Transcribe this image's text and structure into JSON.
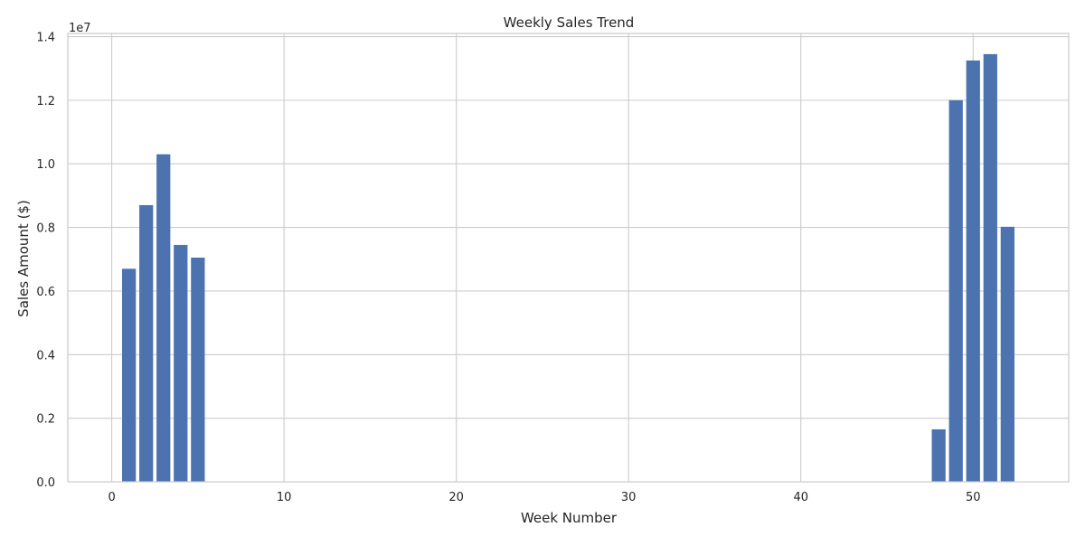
{
  "chart_data": {
    "type": "bar",
    "title": "Weekly Sales Trend",
    "xlabel": "Week Number",
    "ylabel": "Sales Amount ($)",
    "y_offset_label": "1e7",
    "y_scale": 10000000,
    "x": [
      1,
      2,
      3,
      4,
      5,
      48,
      49,
      50,
      51,
      52
    ],
    "values": [
      6700000,
      8700000,
      10300000,
      7450000,
      7050000,
      1650000,
      12000000,
      13250000,
      13450000,
      8020000
    ],
    "xlim": [
      -2.55,
      55.55
    ],
    "ylim": [
      0,
      14100000
    ],
    "xticks": [
      0,
      10,
      20,
      30,
      40,
      50
    ],
    "xtick_labels": [
      "0",
      "10",
      "20",
      "30",
      "40",
      "50"
    ],
    "yticks": [
      0,
      2000000,
      4000000,
      6000000,
      8000000,
      10000000,
      12000000,
      14000000
    ],
    "ytick_labels": [
      "0.0",
      "0.2",
      "0.4",
      "0.6",
      "0.8",
      "1.0",
      "1.2",
      "1.4"
    ],
    "grid": true,
    "bar_color": "#4c72b0",
    "grid_color": "#cccccc",
    "spine_color": "#cccccc"
  }
}
